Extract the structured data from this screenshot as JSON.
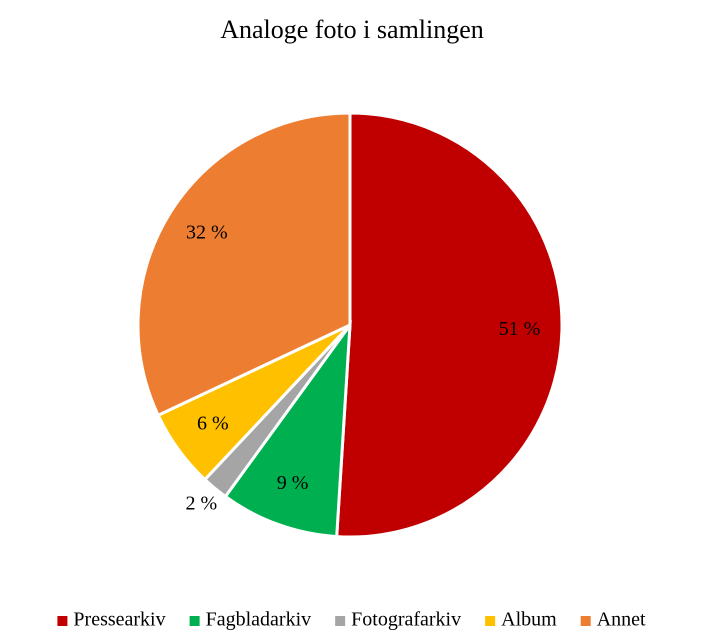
{
  "chart_data": {
    "type": "pie",
    "title": "Analoge foto i samlingen",
    "categories": [
      "Pressearkiv",
      "Fagbladarkiv",
      "Fotografarkiv",
      "Album",
      "Annet"
    ],
    "values": [
      51,
      9,
      2,
      6,
      32
    ],
    "value_labels": [
      "51 %",
      "9 %",
      "2 %",
      "6 %",
      "32 %"
    ],
    "colors": [
      "#c00000",
      "#00b050",
      "#a5a5a5",
      "#ffc000",
      "#ed7d31"
    ],
    "legend": "bottom"
  }
}
